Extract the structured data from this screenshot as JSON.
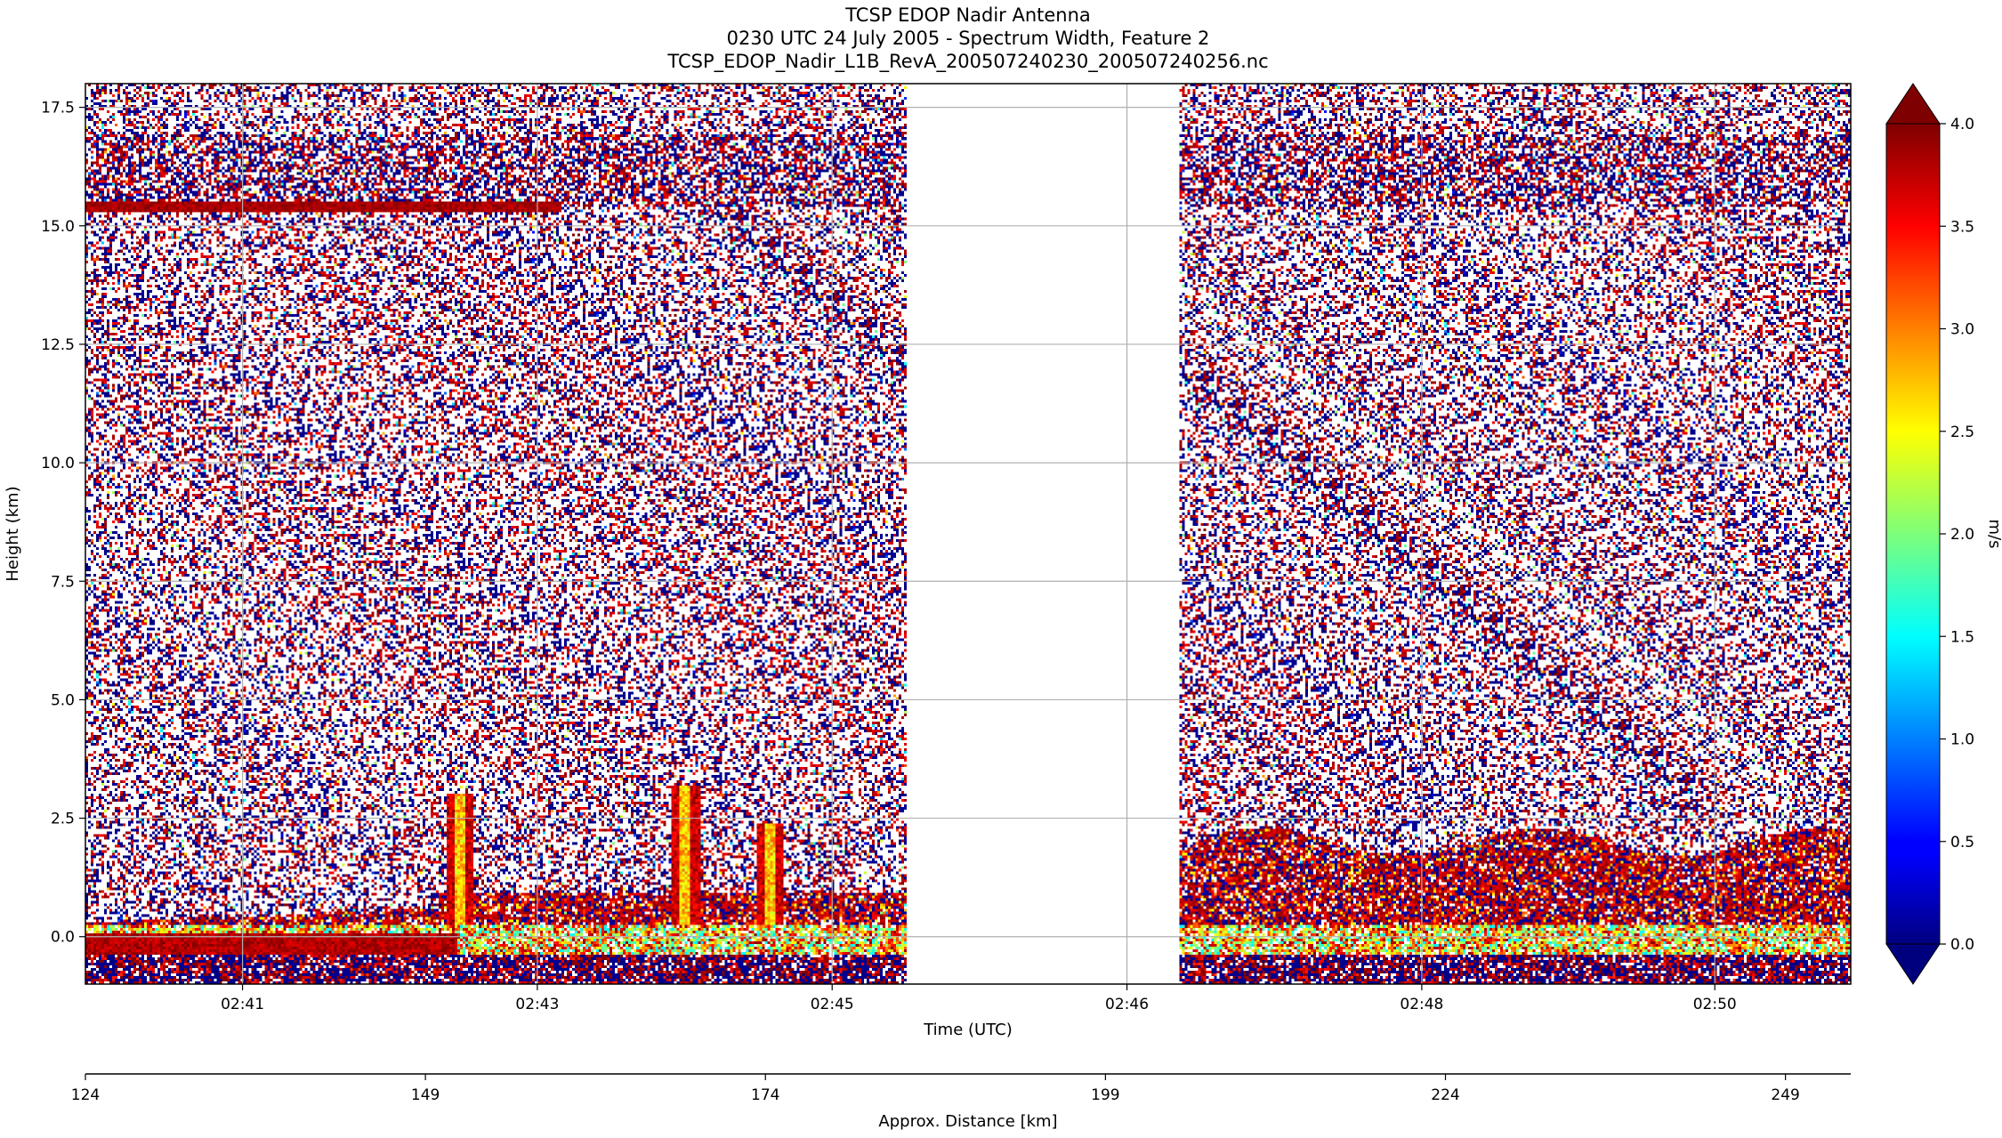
{
  "chart_data": {
    "type": "heatmap",
    "title_lines": [
      "TCSP EDOP Nadir Antenna",
      "0230 UTC 24 July 2005 - Spectrum Width, Feature 2",
      "TCSP_EDOP_Nadir_L1B_RevA_200507240230_200507240256.nc"
    ],
    "xlabel": "Time (UTC)",
    "ylabel": "Height (km)",
    "secondary_xlabel": "Approx. Distance [km]",
    "x_ticks": [
      "02:41",
      "02:43",
      "02:45",
      "02:46",
      "02:48",
      "02:50"
    ],
    "x_tick_fraction": [
      0.089,
      0.256,
      0.423,
      0.59,
      0.757,
      0.923
    ],
    "y_ticks": [
      0.0,
      2.5,
      5.0,
      7.5,
      10.0,
      12.5,
      15.0,
      17.5
    ],
    "y_tick_labels": [
      "0.0",
      "2.5",
      "5.0",
      "7.5",
      "10.0",
      "12.5",
      "15.0",
      "17.5"
    ],
    "ylim": [
      -1.0,
      18.0
    ],
    "distance_ticks": [
      "124",
      "149",
      "174",
      "199",
      "224",
      "249"
    ],
    "distance_tick_values": [
      124,
      149,
      174,
      199,
      224,
      249
    ],
    "distance_range": [
      124,
      253.8
    ],
    "data_gap_fraction": [
      0.465,
      0.62
    ],
    "features": {
      "tropopause_layer_km": 15.4,
      "cirrus_band_km": [
        15.4,
        17.8
      ],
      "surface_km": 0.0,
      "rain_layer_top_km": [
        0.5,
        2.3
      ],
      "convective_towers": [
        {
          "x_fraction": 0.212,
          "top_km": 3.0
        },
        {
          "x_fraction": 0.34,
          "top_km": 3.2
        },
        {
          "x_fraction": 0.388,
          "top_km": 2.4
        }
      ]
    },
    "colorbar": {
      "label": "m/s",
      "vmin": 0.0,
      "vmax": 4.0,
      "colormap": "jet",
      "extend": "both",
      "ticks": [
        0.0,
        0.5,
        1.0,
        1.5,
        2.0,
        2.5,
        3.0,
        3.5,
        4.0
      ],
      "tick_labels": [
        "0.0",
        "0.5",
        "1.0",
        "1.5",
        "2.0",
        "2.5",
        "3.0",
        "3.5",
        "4.0"
      ]
    },
    "grid": true
  }
}
